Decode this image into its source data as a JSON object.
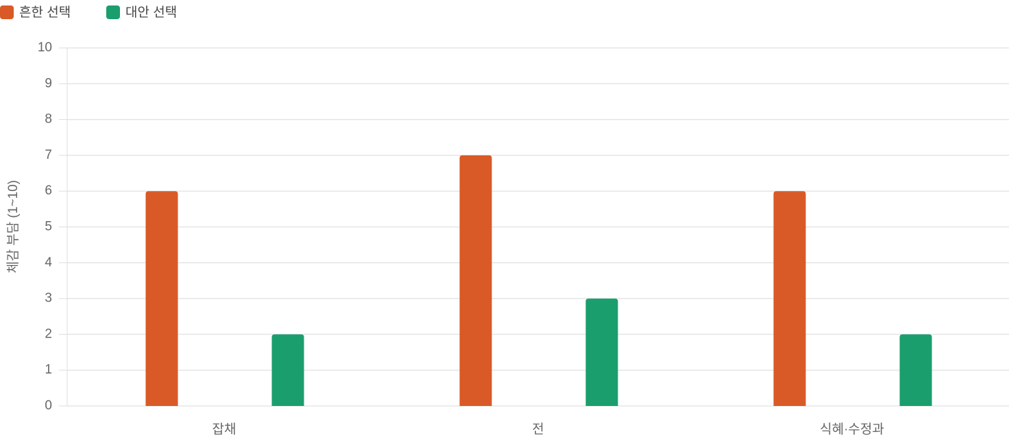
{
  "chart_data": {
    "type": "bar",
    "categories": [
      "잡채",
      "전",
      "식혜·수정과"
    ],
    "series": [
      {
        "name": "흔한 선택",
        "color": "#d95a26",
        "values": [
          6,
          7,
          6
        ]
      },
      {
        "name": "대안 선택",
        "color": "#1b9e6e",
        "values": [
          2,
          3,
          2
        ]
      }
    ],
    "y_label": "체감 부담 (1~10)",
    "ylim": [
      0,
      10
    ],
    "yticks": [
      0,
      1,
      2,
      3,
      4,
      5,
      6,
      7,
      8,
      9,
      10
    ],
    "grid": true,
    "legend": "top-left"
  }
}
